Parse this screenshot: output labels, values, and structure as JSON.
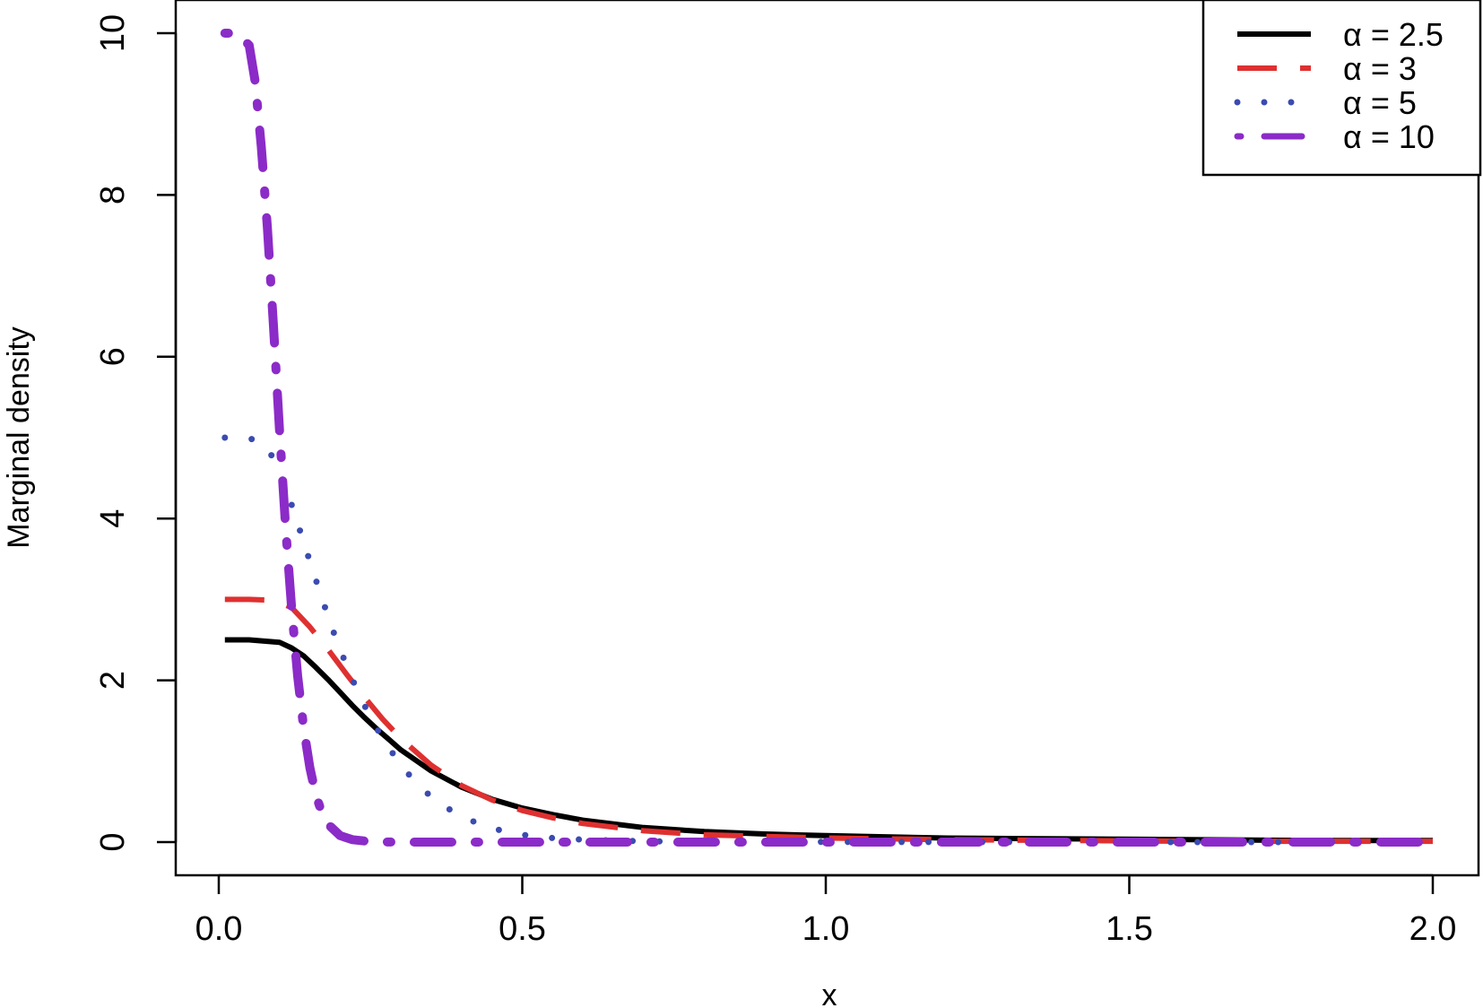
{
  "chart_data": {
    "type": "line",
    "title": "",
    "xlabel": "x",
    "ylabel": "Marginal density",
    "xlim": [
      0.0,
      2.0
    ],
    "ylim": [
      0,
      10
    ],
    "xticks": [
      "0.0",
      "0.5",
      "1.0",
      "1.5",
      "2.0"
    ],
    "yticks": [
      "0",
      "2",
      "4",
      "6",
      "8",
      "10"
    ],
    "grid": false,
    "legend_position": "top-right",
    "series": [
      {
        "name": "α = 2.5",
        "color": "#000000",
        "line_style": "solid",
        "x": [
          0.01,
          0.05,
          0.1,
          0.12,
          0.14,
          0.16,
          0.18,
          0.2,
          0.22,
          0.24,
          0.26,
          0.28,
          0.3,
          0.35,
          0.4,
          0.45,
          0.5,
          0.55,
          0.6,
          0.7,
          0.8,
          0.9,
          1.0,
          1.2,
          1.4,
          1.6,
          1.8,
          2.0
        ],
        "y": [
          2.5,
          2.5,
          2.47,
          2.4,
          2.3,
          2.16,
          2.01,
          1.85,
          1.69,
          1.54,
          1.4,
          1.27,
          1.14,
          0.88,
          0.68,
          0.53,
          0.42,
          0.34,
          0.27,
          0.18,
          0.13,
          0.1,
          0.08,
          0.05,
          0.04,
          0.03,
          0.02,
          0.02
        ]
      },
      {
        "name": "α = 3",
        "color": "#DF3030",
        "line_style": "dashed",
        "x": [
          0.01,
          0.05,
          0.09,
          0.12,
          0.15,
          0.18,
          0.21,
          0.24,
          0.27,
          0.3,
          0.35,
          0.4,
          0.45,
          0.5,
          0.55,
          0.6,
          0.7,
          0.8,
          0.9,
          1.0,
          1.2,
          1.4,
          1.6,
          1.8,
          2.0
        ],
        "y": [
          3.0,
          3.0,
          2.99,
          2.9,
          2.66,
          2.38,
          2.08,
          1.79,
          1.52,
          1.28,
          0.95,
          0.7,
          0.52,
          0.39,
          0.3,
          0.23,
          0.14,
          0.09,
          0.07,
          0.05,
          0.03,
          0.02,
          0.01,
          0.01,
          0.01
        ]
      },
      {
        "name": "α = 5",
        "color": "#3B4BB0",
        "line_style": "dotted",
        "x": [
          0.01,
          0.03,
          0.05,
          0.07,
          0.09,
          0.11,
          0.13,
          0.15,
          0.17,
          0.19,
          0.21,
          0.23,
          0.25,
          0.27,
          0.3,
          0.33,
          0.36,
          0.4,
          0.45,
          0.5,
          0.55,
          0.6,
          0.7,
          0.8,
          1.0,
          1.2,
          1.5,
          1.8,
          2.0
        ],
        "y": [
          5.0,
          5.0,
          4.99,
          4.95,
          4.75,
          4.4,
          3.94,
          3.47,
          3.01,
          2.58,
          2.19,
          1.84,
          1.54,
          1.28,
          0.95,
          0.69,
          0.5,
          0.31,
          0.17,
          0.09,
          0.05,
          0.03,
          0.01,
          0.005,
          0.002,
          0.001,
          0.0,
          0.0,
          0.0
        ]
      },
      {
        "name": "α = 10",
        "color": "#8B2BC8",
        "line_style": "dotdash",
        "x": [
          0.01,
          0.03,
          0.05,
          0.06,
          0.07,
          0.08,
          0.09,
          0.1,
          0.11,
          0.12,
          0.13,
          0.14,
          0.15,
          0.16,
          0.17,
          0.18,
          0.2,
          0.22,
          0.25,
          0.28,
          0.3,
          0.35,
          0.4,
          0.5,
          0.6,
          0.8,
          1.0,
          1.5,
          2.0
        ],
        "y": [
          10.0,
          10.0,
          9.85,
          9.4,
          8.6,
          7.6,
          6.4,
          5.1,
          3.9,
          2.9,
          2.05,
          1.4,
          0.92,
          0.58,
          0.36,
          0.22,
          0.08,
          0.03,
          0.005,
          0.001,
          0.0,
          0.0,
          0.0,
          0.0,
          0.0,
          0.0,
          0.0,
          0.0,
          0.0
        ]
      }
    ]
  }
}
